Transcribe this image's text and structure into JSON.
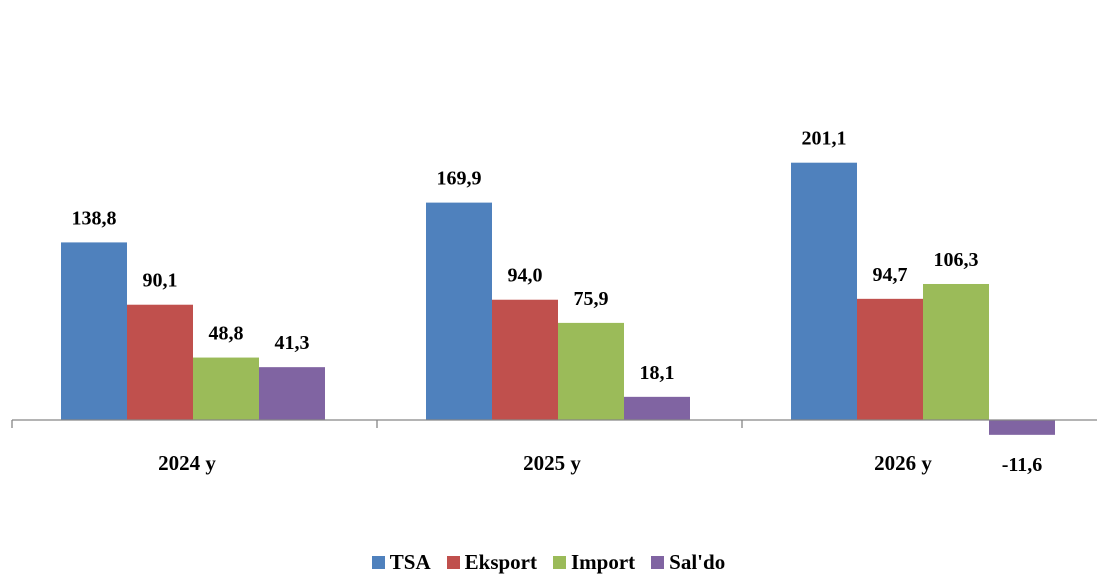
{
  "chart_data": {
    "type": "bar",
    "categories": [
      "2024 y",
      "2025 y",
      "2026 y"
    ],
    "series": [
      {
        "name": "TSA",
        "color": "#4F81BD",
        "values": [
          138.8,
          169.9,
          201.1
        ],
        "labels": [
          "138,8",
          "169,9",
          "201,1"
        ]
      },
      {
        "name": "Eksport",
        "color": "#C0504D",
        "values": [
          90.1,
          94.0,
          94.7
        ],
        "labels": [
          "90,1",
          "94,0",
          "94,7"
        ]
      },
      {
        "name": "Import",
        "color": "#9BBB59",
        "values": [
          48.8,
          75.9,
          106.3
        ],
        "labels": [
          "48,8",
          "75,9",
          "106,3"
        ]
      },
      {
        "name": "Sal'do",
        "color": "#8064A2",
        "values": [
          41.3,
          18.1,
          -11.6
        ],
        "labels": [
          "41,3",
          "18,1",
          "-11,6"
        ]
      }
    ],
    "ylim": [
      -15,
      215
    ],
    "grid": false,
    "legend": "bottom"
  }
}
